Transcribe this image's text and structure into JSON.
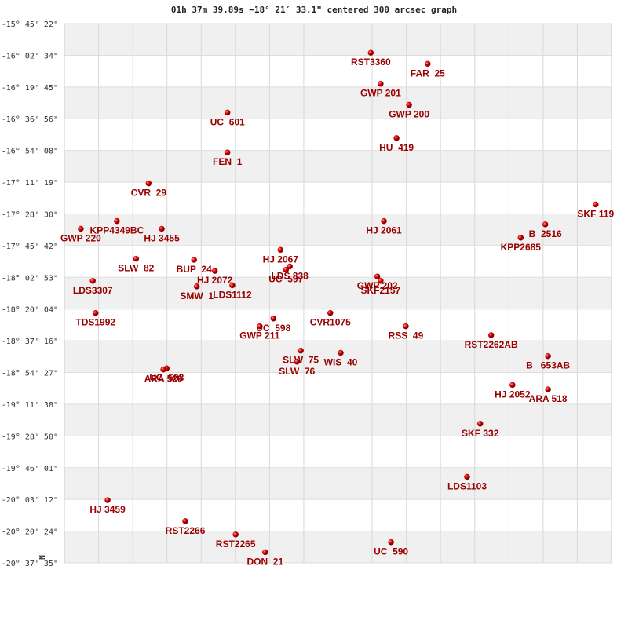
{
  "chart_data": {
    "type": "scatter",
    "title": "01h 37m 39.89s −18° 21′ 33.1\" centered 300 arcsec graph",
    "north_label": "N",
    "xlim": [
      0,
      100
    ],
    "ylim": [
      -20.6264,
      -15.7561
    ],
    "yticks": [
      {
        "value": -15.7561,
        "label": "-15° 45' 22\""
      },
      {
        "value": -16.0428,
        "label": "-16° 02' 34\""
      },
      {
        "value": -16.3292,
        "label": "-16° 19' 45\""
      },
      {
        "value": -16.6156,
        "label": "-16° 36' 56\""
      },
      {
        "value": -16.9022,
        "label": "-16° 54' 08\""
      },
      {
        "value": -17.1886,
        "label": "-17° 11' 19\""
      },
      {
        "value": -17.475,
        "label": "-17° 28' 30\""
      },
      {
        "value": -17.7617,
        "label": "-17° 45' 42\""
      },
      {
        "value": -18.0481,
        "label": "-18° 02' 53\""
      },
      {
        "value": -18.3344,
        "label": "-18° 20' 04\""
      },
      {
        "value": -18.6211,
        "label": "-18° 37' 16\""
      },
      {
        "value": -18.9075,
        "label": "-18° 54' 27\""
      },
      {
        "value": -19.1939,
        "label": "-19° 11' 38\""
      },
      {
        "value": -19.4806,
        "label": "-19° 28' 50\""
      },
      {
        "value": -19.7669,
        "label": "-19° 46' 01\""
      },
      {
        "value": -20.0533,
        "label": "-20° 03' 12\""
      },
      {
        "value": -20.34,
        "label": "-20° 20' 24\""
      },
      {
        "value": -20.6264,
        "label": "-20° 37' 35\""
      }
    ],
    "grid": true,
    "series": [
      {
        "color": "#cc0000",
        "labels": [
          "RST3360",
          "FAR  25",
          "GWP 201",
          "GWP 200",
          "UC  601",
          "HU  419",
          "FEN  1",
          "CVR  29",
          "SKF 119",
          "HJ 2061",
          "B  2516",
          "KPP4349BC",
          "GWP 220",
          "HJ 3455",
          "KPP2685",
          "HJ 2067",
          "SLW  82",
          "BUP  24",
          "LDS 838",
          "UC  597",
          "HJ 2072",
          "GWP 202",
          "SKF2157",
          "LDS3307",
          "SMW  1",
          "LDS1112",
          "CVR1075",
          "TDS1992",
          "UC  598",
          "RSS  49",
          "GWP 211",
          "RST2262AB",
          "SLW  75",
          "WIS  40",
          "SLW  76",
          "B   653AB",
          "UC  508",
          "ARA 520",
          "HJ 2052",
          "ARA 518",
          "SKF 332",
          "LDS1103",
          "HJ 3459",
          "RST2266",
          "RST2265",
          "UC  590",
          "DON  21"
        ],
        "x": [
          56.0,
          66.4,
          57.8,
          63.0,
          29.8,
          60.7,
          29.8,
          15.4,
          97.1,
          58.4,
          87.9,
          9.6,
          3.0,
          17.8,
          83.4,
          39.5,
          13.1,
          23.7,
          41.2,
          40.5,
          27.5,
          57.2,
          57.8,
          5.2,
          24.2,
          30.7,
          48.6,
          5.7,
          38.2,
          62.4,
          35.7,
          78.0,
          43.2,
          50.5,
          42.5,
          88.4,
          18.7,
          18.1,
          81.9,
          88.4,
          76.0,
          73.6,
          7.9,
          22.1,
          31.3,
          59.7,
          36.7
        ],
        "values": [
          -16.02,
          -16.12,
          -16.3,
          -16.49,
          -16.56,
          -16.79,
          -16.92,
          -17.2,
          -17.39,
          -17.54,
          -17.57,
          -17.54,
          -17.61,
          -17.61,
          -17.69,
          -17.8,
          -17.88,
          -17.89,
          -17.95,
          -17.98,
          -17.99,
          -18.04,
          -18.08,
          -18.08,
          -18.13,
          -18.12,
          -18.37,
          -18.37,
          -18.42,
          -18.49,
          -18.49,
          -18.57,
          -18.71,
          -18.73,
          -18.81,
          -18.76,
          -18.87,
          -18.88,
          -19.02,
          -19.06,
          -19.37,
          -19.85,
          -20.06,
          -20.25,
          -20.37,
          -20.44,
          -20.53
        ]
      }
    ]
  }
}
